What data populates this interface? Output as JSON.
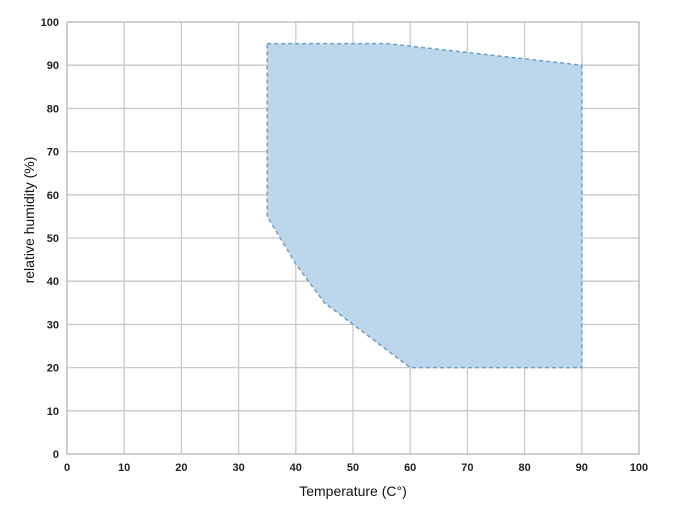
{
  "chart_data": {
    "type": "area",
    "title": "",
    "xlabel": "Temperature (C°)",
    "ylabel": "relative humidity (%)",
    "xlim": [
      0,
      100
    ],
    "ylim": [
      0,
      100
    ],
    "x_ticks": [
      0,
      10,
      20,
      30,
      40,
      50,
      60,
      70,
      80,
      90,
      100
    ],
    "y_ticks": [
      0,
      10,
      20,
      30,
      40,
      50,
      60,
      70,
      80,
      90,
      100
    ],
    "grid": true,
    "series": [
      {
        "polygon": [
          {
            "x": 35,
            "y": 95
          },
          {
            "x": 56,
            "y": 95
          },
          {
            "x": 90,
            "y": 90
          },
          {
            "x": 90,
            "y": 20
          },
          {
            "x": 60,
            "y": 20
          },
          {
            "x": 50,
            "y": 30
          },
          {
            "x": 45,
            "y": 35
          },
          {
            "x": 40,
            "y": 44
          },
          {
            "x": 35,
            "y": 55
          }
        ],
        "fill": "#bcd7ec",
        "stroke": "#6a9fc6",
        "line_style": "dashed"
      }
    ]
  }
}
